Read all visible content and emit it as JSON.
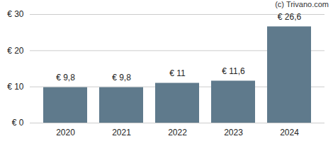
{
  "chart_data": {
    "type": "bar",
    "annotations": [
      "(c) Trivano.com"
    ],
    "categories": [
      "2020",
      "2021",
      "2022",
      "2023",
      "2024"
    ],
    "values": [
      9.8,
      9.8,
      11,
      11.6,
      26.6
    ],
    "value_labels": [
      "€ 9,8",
      "€ 9,8",
      "€ 11",
      "€ 11,6",
      "€ 26,6"
    ],
    "data_labels": true,
    "color": "#5f7a8c",
    "ylim": [
      0,
      30
    ],
    "yticks": [
      {
        "value": 0,
        "label": "€ 0"
      },
      {
        "value": 10,
        "label": "€ 10"
      },
      {
        "value": 20,
        "label": "€ 20"
      },
      {
        "value": 30,
        "label": "€ 30"
      }
    ],
    "grid": true
  }
}
